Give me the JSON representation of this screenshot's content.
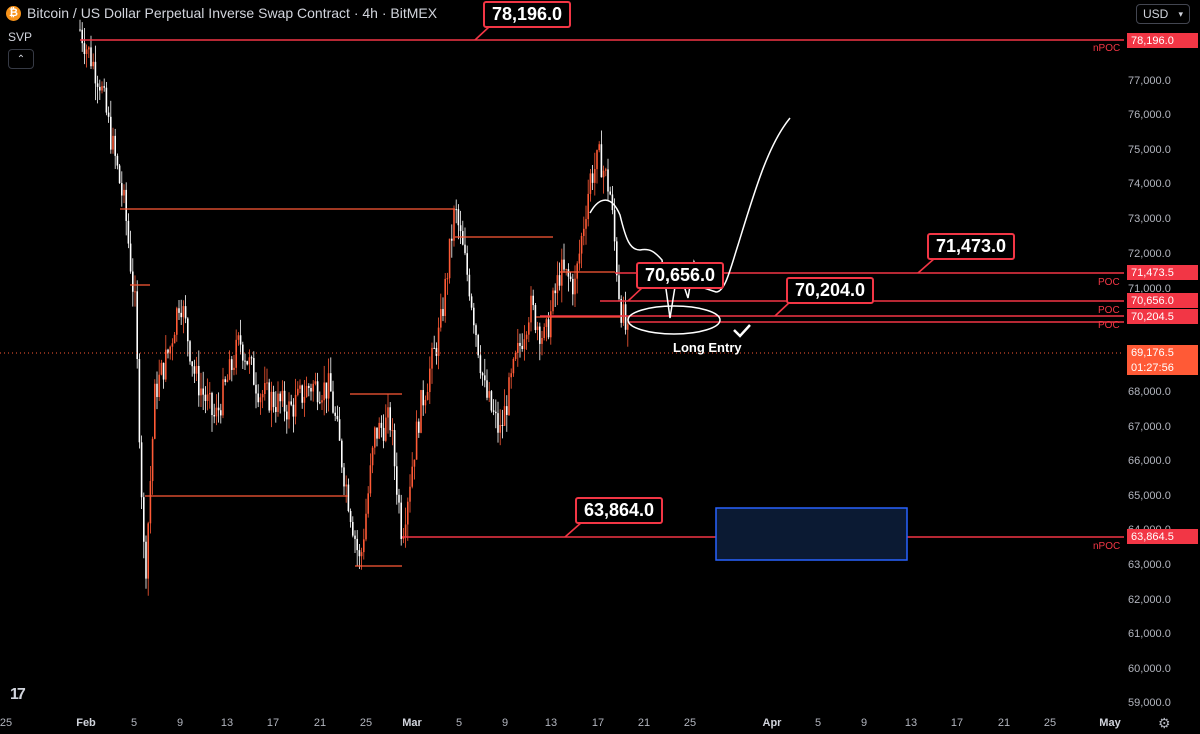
{
  "header": {
    "coin_symbol": "₿",
    "title": "Bitcoin / US Dollar Perpetual Inverse Swap Contract · 4h · BitMEX",
    "indicator": "SVP",
    "collapse_icon": "chevron-up-icon",
    "currency": "USD"
  },
  "colors": {
    "up": "#ff5a36",
    "down": "#ffffff",
    "annotation": "#f23645",
    "zone": "#2962ff"
  },
  "price_axis": {
    "ticks": [
      "77,000.0",
      "76,000.0",
      "75,000.0",
      "74,000.0",
      "73,000.0",
      "72,000.0",
      "71,000.0",
      "68,000.0",
      "67,000.0",
      "66,000.0",
      "65,000.0",
      "64,000.0",
      "63,000.0",
      "62,000.0",
      "61,000.0",
      "60,000.0",
      "59,000.0"
    ],
    "tags": {
      "p78196": "78,196.0",
      "p71473": "71,473.5",
      "p70656": "70,656.0",
      "p70204": "70,204.5",
      "p69176": "69,176.5",
      "countdown": "01:27:56",
      "p63864": "63,864.5"
    }
  },
  "time_axis": [
    "25",
    "Feb",
    "5",
    "9",
    "13",
    "17",
    "21",
    "25",
    "Mar",
    "5",
    "9",
    "13",
    "17",
    "21",
    "25",
    "Apr",
    "5",
    "9",
    "13",
    "17",
    "21",
    "25",
    "May"
  ],
  "callouts": {
    "c78196": "78,196.0",
    "c71473": "71,473.0",
    "c70656": "70,656.0",
    "c70204": "70,204.0",
    "c63864": "63,864.0"
  },
  "labels": {
    "npoc_top": "nPOC",
    "poc1": "POC",
    "poc2": "POC",
    "poc3": "POC",
    "npoc_bottom": "nPOC",
    "long_entry": "Long Entry"
  },
  "chart_data": {
    "type": "candlestick",
    "title": "Bitcoin / US Dollar Perpetual Inverse Swap Contract · 4h · BitMEX",
    "timeframe": "4h",
    "x_range": [
      "Jan 25",
      "May"
    ],
    "ylim": [
      58700,
      78900
    ],
    "last_price": 69176.5,
    "levels": [
      {
        "price": 78196.0,
        "label": "nPOC"
      },
      {
        "price": 71473.0,
        "label": "POC"
      },
      {
        "price": 70656.0,
        "label": "POC"
      },
      {
        "price": 70204.0,
        "label": "POC"
      },
      {
        "price": 63864.0,
        "label": "nPOC"
      }
    ],
    "annotations": [
      "Long Entry"
    ],
    "anchors": [
      {
        "x": 80,
        "p": 78500
      },
      {
        "x": 100,
        "p": 77000
      },
      {
        "x": 125,
        "p": 73300
      },
      {
        "x": 135,
        "p": 70500
      },
      {
        "x": 145,
        "p": 62500
      },
      {
        "x": 155,
        "p": 68000
      },
      {
        "x": 170,
        "p": 69300
      },
      {
        "x": 180,
        "p": 70800
      },
      {
        "x": 195,
        "p": 68500
      },
      {
        "x": 215,
        "p": 67200
      },
      {
        "x": 240,
        "p": 69500
      },
      {
        "x": 260,
        "p": 68000
      },
      {
        "x": 290,
        "p": 67500
      },
      {
        "x": 310,
        "p": 68200
      },
      {
        "x": 330,
        "p": 68100
      },
      {
        "x": 345,
        "p": 65500
      },
      {
        "x": 360,
        "p": 63000
      },
      {
        "x": 375,
        "p": 66800
      },
      {
        "x": 390,
        "p": 67200
      },
      {
        "x": 402,
        "p": 63900
      },
      {
        "x": 420,
        "p": 67500
      },
      {
        "x": 440,
        "p": 69800
      },
      {
        "x": 455,
        "p": 73300
      },
      {
        "x": 470,
        "p": 71000
      },
      {
        "x": 485,
        "p": 68000
      },
      {
        "x": 500,
        "p": 66800
      },
      {
        "x": 515,
        "p": 68800
      },
      {
        "x": 530,
        "p": 70500
      },
      {
        "x": 545,
        "p": 69500
      },
      {
        "x": 560,
        "p": 71500
      },
      {
        "x": 575,
        "p": 71100
      },
      {
        "x": 590,
        "p": 74200
      },
      {
        "x": 600,
        "p": 74800
      },
      {
        "x": 610,
        "p": 73800
      },
      {
        "x": 620,
        "p": 70600
      },
      {
        "x": 628,
        "p": 69500
      }
    ]
  }
}
